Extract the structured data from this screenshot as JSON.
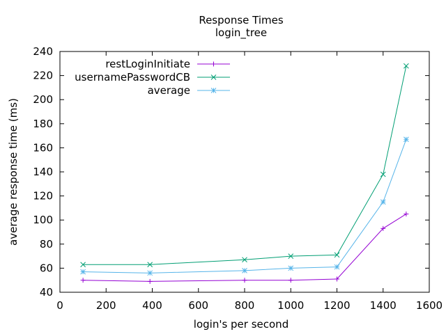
{
  "chart_data": {
    "type": "line",
    "title": "Response Times",
    "subtitle": "login_tree",
    "xlabel": "login's per second",
    "ylabel": "average response time (ms)",
    "xlim": [
      0,
      1600
    ],
    "ylim": [
      40,
      240
    ],
    "x_ticks": [
      0,
      200,
      400,
      600,
      800,
      1000,
      1200,
      1400,
      1600
    ],
    "y_ticks": [
      40,
      60,
      80,
      100,
      120,
      140,
      160,
      180,
      200,
      220,
      240
    ],
    "grid": false,
    "legend_position": "top-left",
    "x": [
      100,
      390,
      800,
      1000,
      1200,
      1400,
      1500
    ],
    "series": [
      {
        "name": "restLoginInitiate",
        "color": "#9400d3",
        "marker": "plus",
        "values": [
          50,
          49,
          50,
          50,
          51,
          93,
          105
        ]
      },
      {
        "name": "usernamePasswordCB",
        "color": "#009e73",
        "marker": "cross",
        "values": [
          63,
          63,
          67,
          70,
          71,
          138,
          228
        ]
      },
      {
        "name": "average",
        "color": "#56b4e9",
        "marker": "star",
        "values": [
          57,
          56,
          58,
          60,
          61,
          115,
          167
        ]
      }
    ]
  }
}
